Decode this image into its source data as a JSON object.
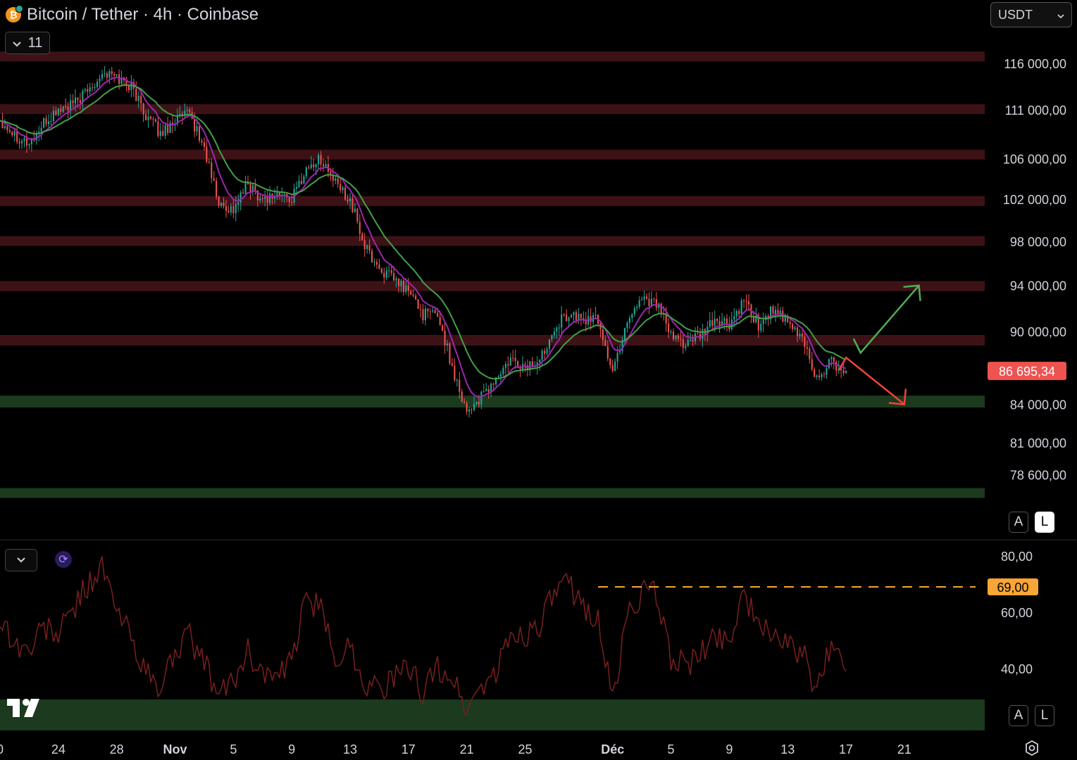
{
  "header": {
    "title": "Bitcoin / Tether · 4h · Coinbase",
    "coin_icon": "bitcoin-icon",
    "coin_glyph": "₿"
  },
  "indicators_toggle": {
    "count": "11"
  },
  "currency_select": {
    "value": "USDT"
  },
  "price_scale_buttons": {
    "auto": "A",
    "log": "L"
  },
  "rsi_scale_buttons": {
    "auto": "A",
    "log": "L"
  },
  "colors": {
    "background": "#000000",
    "resistance_zone": "#3d1217",
    "support_zone": "#1b3a1e",
    "candle_up": "#26a69a",
    "candle_down": "#ef5350",
    "ema_fast": "#9c27b0",
    "ema_slow": "#43a047",
    "rsi_line": "#7a1f1f",
    "arrow_up": "#4caf50",
    "arrow_down": "#f44336",
    "last_price": "#ef5350",
    "level_69": "#f7a535"
  },
  "chart_data": [
    {
      "type": "candlestick",
      "symbol": "Bitcoin / Tether",
      "interval": "4h",
      "exchange": "Coinbase",
      "y_ticks": [
        "116 000,00",
        "111 000,00",
        "106 000,00",
        "102 000,00",
        "98 000,00",
        "94 000,00",
        "90 000,00",
        "84 000,00",
        "81 000,00",
        "78 600,00"
      ],
      "y_tick_values": [
        116000,
        111000,
        106000,
        102000,
        98000,
        94000,
        90000,
        84000,
        81000,
        78600
      ],
      "ylim": [
        76500,
        118500
      ],
      "y_scale": "log",
      "last_price": {
        "label": "86 695,34",
        "value": 86695.34
      },
      "x_ticks": [
        "0",
        "24",
        "28",
        "Nov",
        "5",
        "9",
        "13",
        "17",
        "21",
        "25",
        "Déc",
        "5",
        "9",
        "13",
        "17",
        "21"
      ],
      "x_range": [
        "Oct 20",
        "Dec 24"
      ],
      "resistance_zones": [
        [
          116500,
          117300
        ],
        [
          110800,
          111600
        ],
        [
          106000,
          106900
        ],
        [
          101400,
          102300
        ],
        [
          97700,
          98500
        ],
        [
          93500,
          94400
        ],
        [
          88800,
          89700
        ]
      ],
      "support_zones": [
        [
          83750,
          84700
        ],
        [
          77000,
          77600
        ]
      ],
      "series": [
        {
          "name": "Close (approx.)",
          "kind": "price",
          "points": [
            [
              "Oct 20",
              110000
            ],
            [
              "Oct 21",
              108500
            ],
            [
              "Oct 22",
              107500
            ],
            [
              "Oct 23",
              109500
            ],
            [
              "Oct 24",
              111000
            ],
            [
              "Oct 25",
              111500
            ],
            [
              "Oct 26",
              113000
            ],
            [
              "Oct 27",
              115000
            ],
            [
              "Oct 28",
              114500
            ],
            [
              "Oct 29",
              113500
            ],
            [
              "Oct 30",
              110500
            ],
            [
              "Oct 31",
              108500
            ],
            [
              "Nov 1",
              110000
            ],
            [
              "Nov 2",
              110500
            ],
            [
              "Nov 3",
              107000
            ],
            [
              "Nov 4",
              101500
            ],
            [
              "Nov 5",
              101000
            ],
            [
              "Nov 6",
              103500
            ],
            [
              "Nov 7",
              102000
            ],
            [
              "Nov 8",
              102500
            ],
            [
              "Nov 9",
              102000
            ],
            [
              "Nov 10",
              105000
            ],
            [
              "Nov 11",
              106000
            ],
            [
              "Nov 12",
              103500
            ],
            [
              "Nov 13",
              102000
            ],
            [
              "Nov 14",
              97500
            ],
            [
              "Nov 15",
              95500
            ],
            [
              "Nov 16",
              94500
            ],
            [
              "Nov 17",
              93500
            ],
            [
              "Nov 18",
              91500
            ],
            [
              "Nov 19",
              91500
            ],
            [
              "Nov 20",
              87000
            ],
            [
              "Nov 21",
              83500
            ],
            [
              "Nov 22",
              84500
            ],
            [
              "Nov 23",
              86000
            ],
            [
              "Nov 24",
              87500
            ],
            [
              "Nov 25",
              87000
            ],
            [
              "Nov 26",
              87500
            ],
            [
              "Nov 27",
              90500
            ],
            [
              "Nov 28",
              91500
            ],
            [
              "Nov 29",
              91000
            ],
            [
              "Nov 30",
              91000
            ],
            [
              "Dec 1",
              86500
            ],
            [
              "Dec 2",
              91000
            ],
            [
              "Dec 3",
              93000
            ],
            [
              "Dec 4",
              92500
            ],
            [
              "Dec 5",
              89500
            ],
            [
              "Dec 6",
              89000
            ],
            [
              "Dec 7",
              89500
            ],
            [
              "Dec 8",
              91000
            ],
            [
              "Dec 9",
              90500
            ],
            [
              "Dec 10",
              92500
            ],
            [
              "Dec 11",
              90500
            ],
            [
              "Dec 12",
              92000
            ],
            [
              "Dec 13",
              90500
            ],
            [
              "Dec 14",
              89500
            ],
            [
              "Dec 15",
              86000
            ],
            [
              "Dec 16",
              87500
            ],
            [
              "Dec 17",
              86695
            ]
          ]
        },
        {
          "name": "EMA fast",
          "kind": "ema",
          "period": 9
        },
        {
          "name": "EMA slow",
          "kind": "ema",
          "period": 21
        }
      ],
      "arrows": [
        {
          "direction": "up",
          "from": [
            "Dec 18",
            88200
          ],
          "to": [
            "Dec 22",
            94000
          ]
        },
        {
          "direction": "down",
          "from": [
            "Dec 17",
            87800
          ],
          "to": [
            "Dec 21",
            84000
          ]
        }
      ]
    },
    {
      "type": "line",
      "name": "RSI",
      "y_ticks": [
        "80,00",
        "60,00",
        "40,00"
      ],
      "y_tick_values": [
        80,
        60,
        40
      ],
      "ylim": [
        20,
        83
      ],
      "marked_level": {
        "label": "69,00",
        "value": 69,
        "from": "Nov 30",
        "to": "Dec 24"
      },
      "oversold_zone": [
        18,
        29
      ],
      "points": [
        [
          "Oct 20",
          58
        ],
        [
          "Oct 21",
          49
        ],
        [
          "Oct 22",
          46
        ],
        [
          "Oct 23",
          55
        ],
        [
          "Oct 24",
          52
        ],
        [
          "Oct 25",
          61
        ],
        [
          "Oct 26",
          70
        ],
        [
          "Oct 27",
          76
        ],
        [
          "Oct 28",
          60
        ],
        [
          "Oct 29",
          52
        ],
        [
          "Oct 30",
          38
        ],
        [
          "Oct 31",
          32
        ],
        [
          "Nov 1",
          47
        ],
        [
          "Nov 2",
          51
        ],
        [
          "Nov 3",
          42
        ],
        [
          "Nov 4",
          30
        ],
        [
          "Nov 5",
          36
        ],
        [
          "Nov 6",
          46
        ],
        [
          "Nov 7",
          39
        ],
        [
          "Nov 8",
          36
        ],
        [
          "Nov 9",
          42
        ],
        [
          "Nov 10",
          66
        ],
        [
          "Nov 11",
          60
        ],
        [
          "Nov 12",
          44
        ],
        [
          "Nov 13",
          48
        ],
        [
          "Nov 14",
          35
        ],
        [
          "Nov 15",
          33
        ],
        [
          "Nov 16",
          36
        ],
        [
          "Nov 17",
          40
        ],
        [
          "Nov 18",
          32
        ],
        [
          "Nov 19",
          40
        ],
        [
          "Nov 20",
          37
        ],
        [
          "Nov 21",
          25
        ],
        [
          "Nov 22",
          34
        ],
        [
          "Nov 23",
          38
        ],
        [
          "Nov 24",
          52
        ],
        [
          "Nov 25",
          52
        ],
        [
          "Nov 26",
          56
        ],
        [
          "Nov 27",
          66
        ],
        [
          "Nov 28",
          70
        ],
        [
          "Nov 29",
          62
        ],
        [
          "Nov 30",
          58
        ],
        [
          "Dec 1",
          28
        ],
        [
          "Dec 2",
          59
        ],
        [
          "Dec 3",
          67
        ],
        [
          "Dec 4",
          66
        ],
        [
          "Dec 5",
          44
        ],
        [
          "Dec 6",
          41
        ],
        [
          "Dec 7",
          44
        ],
        [
          "Dec 8",
          52
        ],
        [
          "Dec 9",
          50
        ],
        [
          "Dec 10",
          68
        ],
        [
          "Dec 11",
          53
        ],
        [
          "Dec 12",
          54
        ],
        [
          "Dec 13",
          47
        ],
        [
          "Dec 14",
          46
        ],
        [
          "Dec 15",
          30
        ],
        [
          "Dec 16",
          50
        ],
        [
          "Dec 17",
          39
        ]
      ]
    }
  ]
}
